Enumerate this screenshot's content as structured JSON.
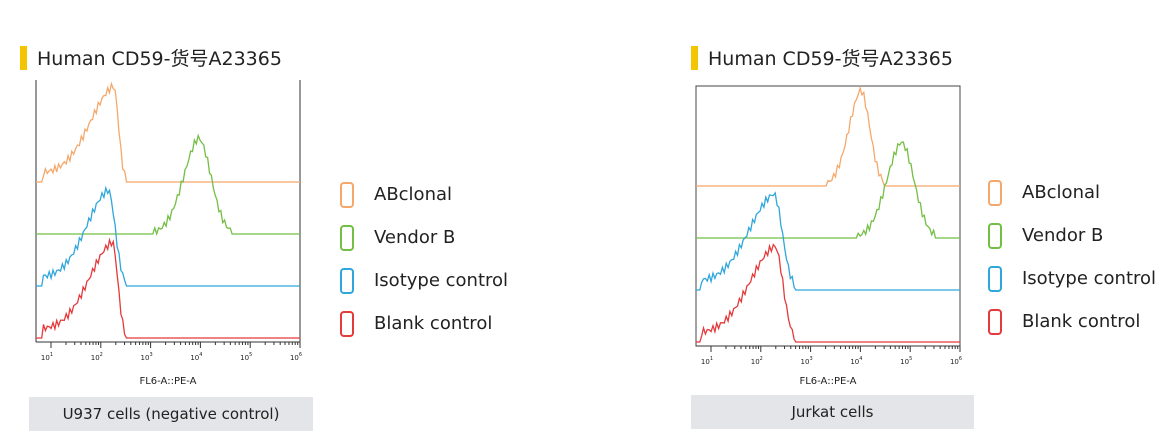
{
  "chart_data": [
    {
      "type": "histogram",
      "title": "Human CD59-货号A23365",
      "xlabel": "FL6-A::PE-A",
      "caption": "U937 cells (negative control)",
      "x_scale": "log",
      "xlim": [
        5,
        1000000
      ],
      "x_ticks": [
        "10",
        "10",
        "10",
        "10",
        "10",
        "10"
      ],
      "x_tick_exponents": [
        "1",
        "2",
        "3",
        "4",
        "5",
        "6"
      ],
      "series": [
        {
          "name": "ABclonal",
          "color": "#f5a86b",
          "peak_x": 180,
          "lo_x": 7,
          "hi_x": 320,
          "baseline": 3
        },
        {
          "name": "Vendor B",
          "color": "#72bf44",
          "peak_x": 9000,
          "lo_x": 1200,
          "hi_x": 40000,
          "baseline": 2
        },
        {
          "name": "Isotype control",
          "color": "#2fa6dc",
          "peak_x": 140,
          "lo_x": 7,
          "hi_x": 320,
          "baseline": 1
        },
        {
          "name": "Blank control",
          "color": "#e5393b",
          "peak_x": 170,
          "lo_x": 7,
          "hi_x": 320,
          "baseline": 0
        }
      ]
    },
    {
      "type": "histogram",
      "title": "Human CD59-货号A23365",
      "xlabel": "FL6-A::PE-A",
      "caption": "Jurkat cells",
      "x_scale": "log",
      "xlim": [
        5,
        1000000
      ],
      "x_ticks": [
        "10",
        "10",
        "10",
        "10",
        "10",
        "10"
      ],
      "x_tick_exponents": [
        "1",
        "2",
        "3",
        "4",
        "5",
        "6"
      ],
      "series": [
        {
          "name": "ABclonal",
          "color": "#f5a86b",
          "peak_x": 10000,
          "lo_x": 2000,
          "hi_x": 30000,
          "baseline": 3
        },
        {
          "name": "Vendor B",
          "color": "#72bf44",
          "peak_x": 65000,
          "lo_x": 9000,
          "hi_x": 300000,
          "baseline": 2
        },
        {
          "name": "Isotype control",
          "color": "#2fa6dc",
          "peak_x": 180,
          "lo_x": 6,
          "hi_x": 500,
          "baseline": 1
        },
        {
          "name": "Blank control",
          "color": "#e5393b",
          "peak_x": 190,
          "lo_x": 6,
          "hi_x": 500,
          "baseline": 0
        }
      ]
    }
  ],
  "legend": [
    {
      "label": "ABclonal",
      "color": "#f5a86b"
    },
    {
      "label": "Vendor B",
      "color": "#72bf44"
    },
    {
      "label": "Isotype control",
      "color": "#2fa6dc"
    },
    {
      "label": "Blank control",
      "color": "#e5393b"
    }
  ]
}
